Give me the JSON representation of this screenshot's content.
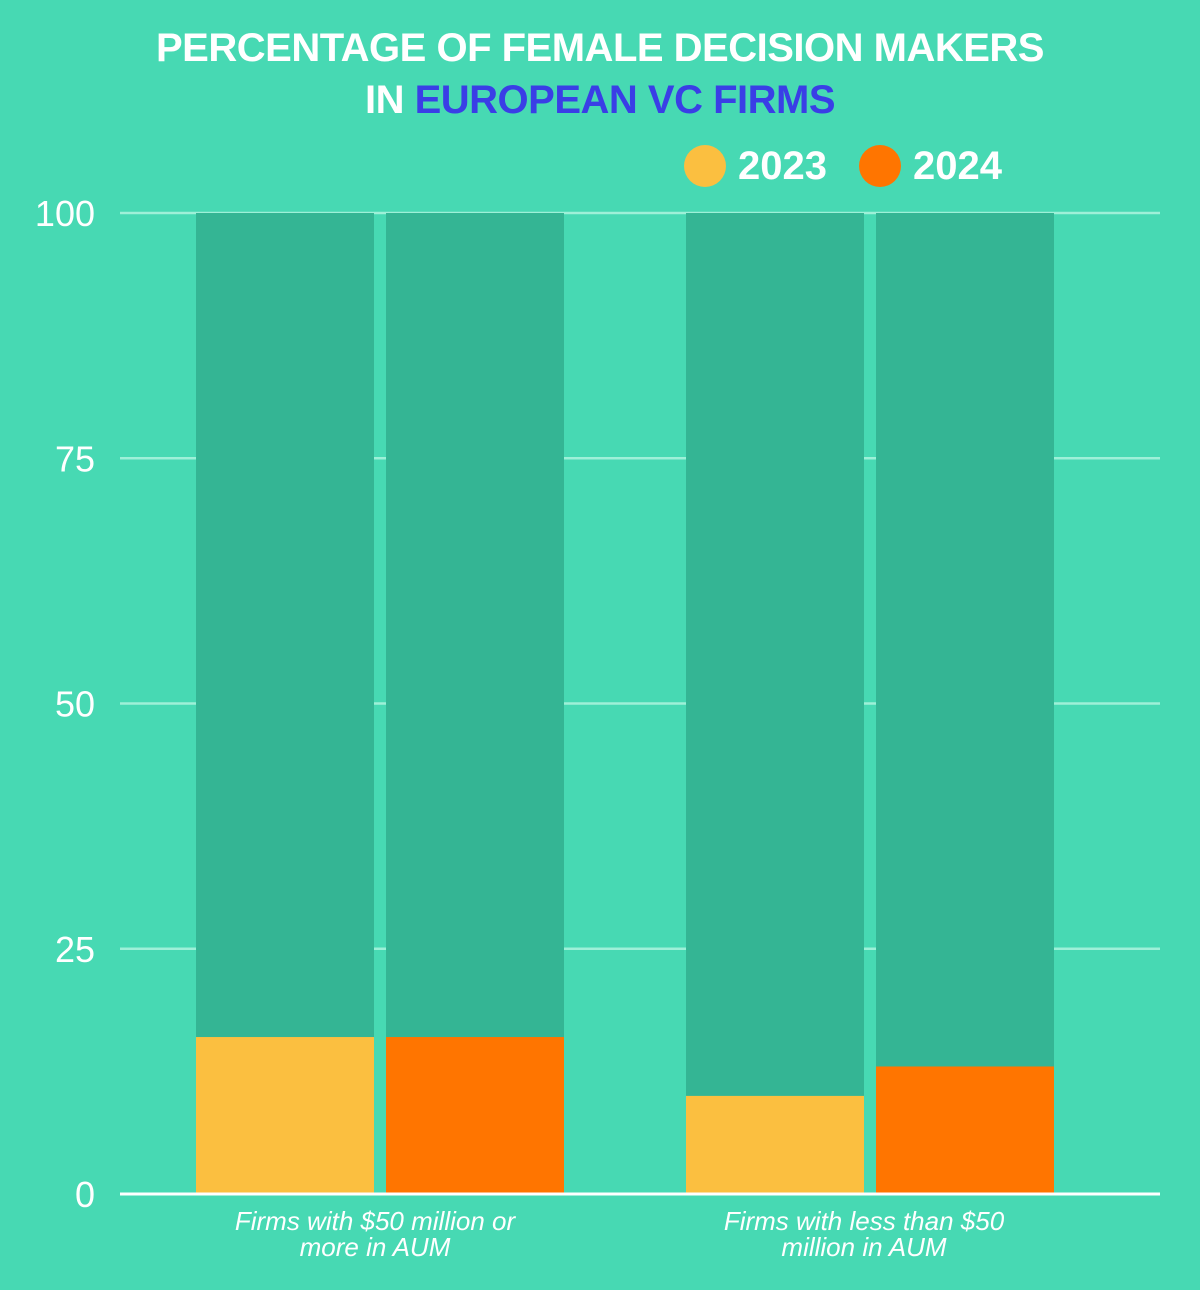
{
  "title": {
    "line1": "PERCENTAGE OF FEMALE DECISION MAKERS",
    "line2_prefix": "IN ",
    "line2_highlight": "EUROPEAN VC FIRMS"
  },
  "colors": {
    "background": "#47d9b3",
    "track": "#34b594",
    "gridline": "#9ef0d8",
    "highlight": "#3a3ee6",
    "2023": "#fbbf40",
    "2024": "#ff7500"
  },
  "chart_data": {
    "type": "bar",
    "title": "PERCENTAGE OF FEMALE DECISION MAKERS IN EUROPEAN VC FIRMS",
    "xlabel": "",
    "ylabel": "",
    "ylim": [
      0,
      100
    ],
    "yticks": [
      0,
      25,
      50,
      75,
      100
    ],
    "grid": true,
    "legend_position": "top-right",
    "categories": [
      "Firms with $50 million or more in AUM",
      "Firms with less than $50 million in AUM"
    ],
    "category_lines": [
      [
        "Firms with $50 million or",
        "more in AUM"
      ],
      [
        "Firms with less than $50",
        "million in AUM"
      ]
    ],
    "series": [
      {
        "name": "2023",
        "values": [
          16,
          10
        ]
      },
      {
        "name": "2024",
        "values": [
          16,
          13
        ]
      }
    ],
    "background_bar_max": 100
  }
}
